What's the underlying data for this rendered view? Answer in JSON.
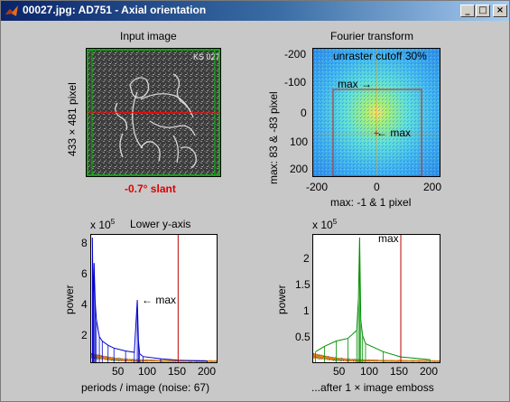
{
  "window": {
    "title": "00027.jpg: AD751 - Axial orientation",
    "buttons": {
      "minimize": "_",
      "maximize": "□",
      "close": "×"
    }
  },
  "panels": {
    "input_image": {
      "title": "Input image",
      "ylabel": "433 × 481 pixel",
      "slant_label": "-0.7° slant",
      "overlay_text": "KS 027",
      "colors": {
        "border": "#00c000",
        "line": "#ff0000"
      }
    },
    "fourier": {
      "title": "Fourier transform",
      "overlay_label": "unraster cutoff 30%",
      "max_label_top": "max →",
      "max_label_bottom": "← max",
      "xlabel": "max: -1 & 1 pixel",
      "ylabel": "max: 83 & -83 pixel",
      "xticks": [
        "-200",
        "0",
        "200"
      ],
      "yticks": [
        "-200",
        "-100",
        "0",
        "100",
        "200"
      ],
      "colors": {
        "rect": "#c0392b",
        "crosshair": "#ff8800"
      }
    },
    "lower_left": {
      "title": "Lower y-axis",
      "exponent_base": "x 10",
      "exponent_power": "5",
      "ylabel": "power",
      "xlabel": "periods / image (noise: 67)",
      "yticks": [
        "8",
        "6",
        "4",
        "2"
      ],
      "xticks": [
        "50",
        "100",
        "150",
        "200"
      ],
      "annotation": "← max"
    },
    "lower_right": {
      "exponent_base": "x 10",
      "exponent_power": "5",
      "ylabel": "power",
      "xlabel": "...after 1 × image emboss",
      "yticks": [
        "2",
        "1.5",
        "1",
        "0.5"
      ],
      "xticks": [
        "50",
        "100",
        "150",
        "200"
      ],
      "annotation": "max"
    }
  },
  "chart_data": [
    {
      "type": "line",
      "title": "Lower y-axis",
      "xlabel": "periods / image (noise: 67)",
      "ylabel": "power",
      "xlim": [
        1,
        216
      ],
      "ylim": [
        0,
        900000
      ],
      "marker_x": 150,
      "series": [
        {
          "name": "",
          "x": [
            3,
            4,
            5,
            6,
            8,
            10,
            15,
            20,
            30,
            40,
            60,
            75,
            80,
            82,
            84,
            90,
            120,
            150,
            200
          ],
          "y": [
            880000,
            600000,
            500000,
            700000,
            420000,
            300000,
            180000,
            150000,
            120000,
            100000,
            80000,
            70000,
            440000,
            150000,
            60000,
            40000,
            25000,
            15000,
            8000
          ]
        }
      ]
    },
    {
      "type": "line",
      "xlabel": "...after 1 × image emboss",
      "ylabel": "power",
      "xlim": [
        1,
        216
      ],
      "ylim": [
        0,
        240000
      ],
      "marker_x": 150,
      "series": [
        {
          "name": "",
          "x": [
            5,
            20,
            40,
            60,
            75,
            78,
            80,
            82,
            85,
            90,
            120,
            150,
            200
          ],
          "y": [
            20000,
            30000,
            40000,
            45000,
            60000,
            120000,
            235000,
            80000,
            50000,
            35000,
            20000,
            10000,
            5000
          ]
        }
      ]
    }
  ]
}
